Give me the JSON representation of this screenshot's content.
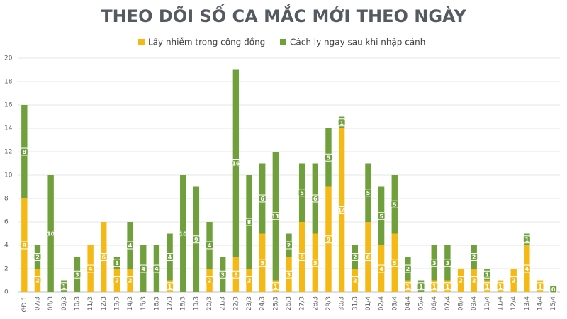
{
  "chart_data": {
    "type": "stacked_bar",
    "title": "THEO DÕI SỐ CA MẮC MỚI THEO NGÀY",
    "categories": [
      "GĐ 1",
      "07/3",
      "08/3",
      "09/3",
      "10/3",
      "11/3",
      "12/3",
      "13/3",
      "14/3",
      "15/3",
      "16/3",
      "17/3",
      "18/3",
      "19/3",
      "20/3",
      "21/3",
      "22/3",
      "23/3",
      "24/3",
      "25/3",
      "26/3",
      "27/3",
      "28/3",
      "29/3",
      "30/3",
      "31/3",
      "01/4",
      "02/4",
      "03/4",
      "04/4",
      "05/4",
      "06/4",
      "07/4",
      "08/4",
      "09/4",
      "10/4",
      "11/4",
      "12/4",
      "13/4",
      "14/4",
      "15/4"
    ],
    "series": [
      {
        "name": "Lây nhiễm trong cộng đồng",
        "color": "#f5b915",
        "values": [
          8,
          2,
          0,
          0,
          0,
          4,
          6,
          2,
          2,
          0,
          0,
          1,
          0,
          0,
          2,
          0,
          3,
          2,
          5,
          1,
          3,
          6,
          5,
          9,
          14,
          2,
          6,
          4,
          5,
          1,
          0,
          1,
          1,
          2,
          2,
          1,
          1,
          2,
          4,
          1,
          0
        ]
      },
      {
        "name": "Cách ly ngay sau khi nhập cảnh",
        "color": "#70a03c",
        "values": [
          8,
          2,
          10,
          1,
          3,
          0,
          0,
          1,
          4,
          4,
          4,
          4,
          10,
          9,
          4,
          3,
          16,
          8,
          6,
          11,
          2,
          5,
          6,
          5,
          1,
          2,
          5,
          5,
          5,
          2,
          1,
          3,
          3,
          0,
          2,
          1,
          0,
          0,
          1,
          0,
          0
        ]
      }
    ],
    "ylim": [
      0,
      20
    ],
    "yticks": [
      0,
      2,
      4,
      6,
      8,
      10,
      12,
      14,
      16,
      18,
      20
    ],
    "grid": true
  }
}
